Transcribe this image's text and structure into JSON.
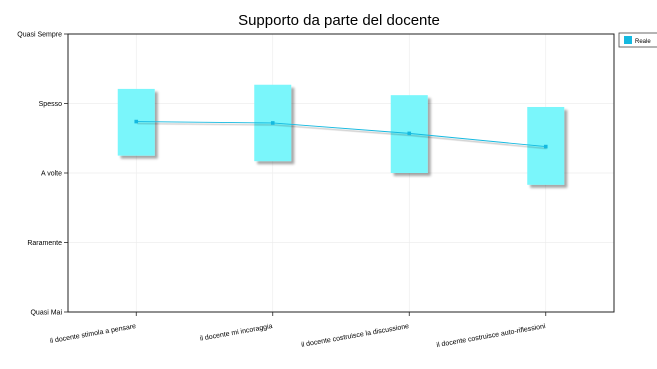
{
  "chart_data": {
    "type": "line",
    "title": "Supporto da parte del docente",
    "xlabel": "",
    "ylabel": "",
    "categories": [
      "il docente stimola a pensare",
      "il docente mi incoraggia",
      "il docente costruisce la discussione",
      "il docente costruisce auto-riflessioni"
    ],
    "y_tick_labels": [
      "Quasi Mai",
      "Raramente",
      "A volte",
      "Spesso",
      "Quasi Sempre"
    ],
    "ylim": [
      1,
      5
    ],
    "grid": true,
    "legend": {
      "placement": "top-right",
      "entries": [
        {
          "name": "Reale",
          "color": "#14b9e0"
        }
      ]
    },
    "series": [
      {
        "name": "Reale",
        "values": [
          3.74,
          3.72,
          3.57,
          3.38
        ],
        "range_low": [
          3.25,
          3.17,
          3.0,
          2.83
        ],
        "range_high": [
          4.21,
          4.27,
          4.12,
          3.95
        ],
        "line_color": "#14b9e0",
        "box_color": "#7af6fb"
      }
    ]
  }
}
